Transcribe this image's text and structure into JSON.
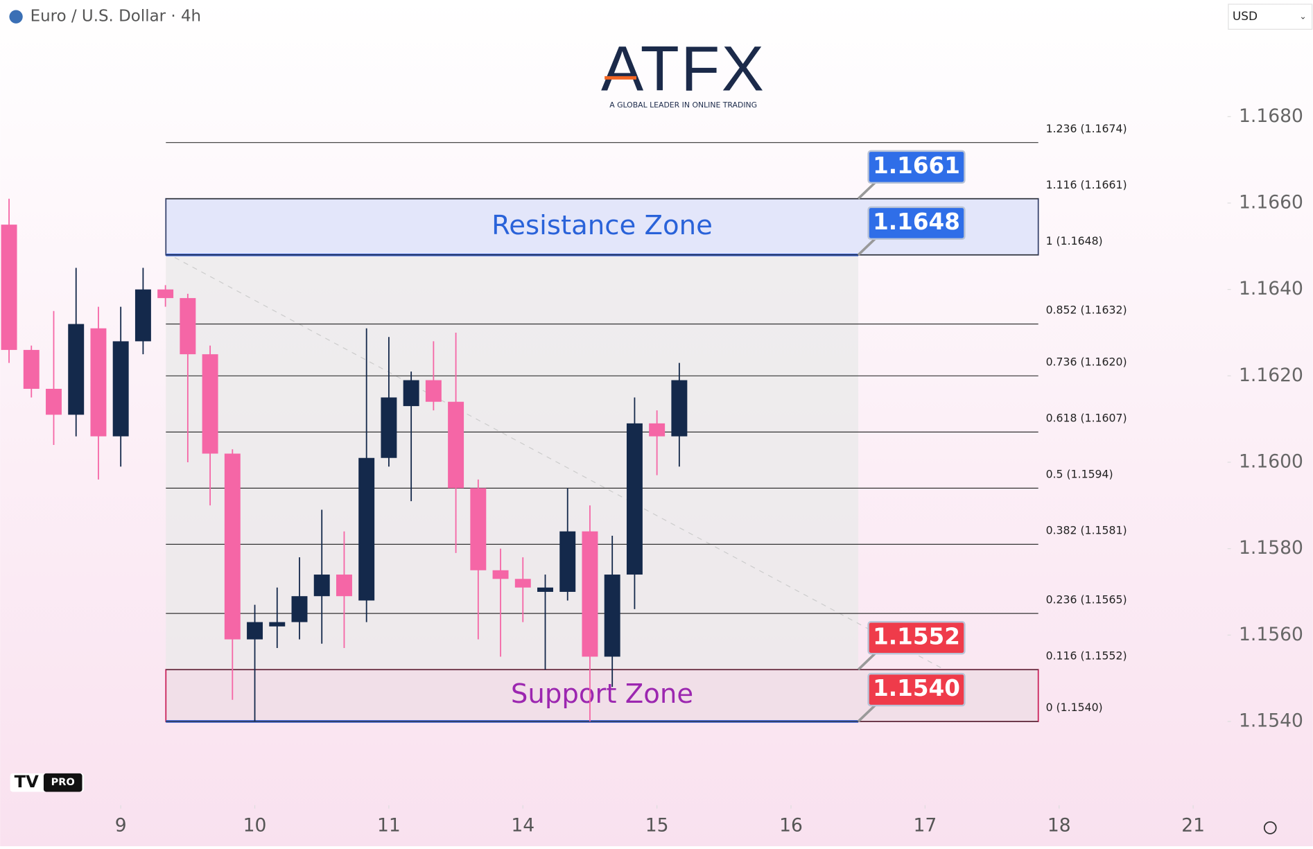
{
  "header": {
    "currency": "USD"
  },
  "branding": {
    "logo": "ATFX",
    "tagline": "A GLOBAL LEADER IN ONLINE TRADING",
    "badge": "PRO"
  },
  "chart_data": {
    "type": "candlestick",
    "title": "Euro / U.S. Dollar · 4h",
    "x": [
      0,
      1,
      2,
      3,
      4,
      5,
      6,
      7,
      8,
      9,
      10,
      11,
      12,
      13,
      14,
      15,
      16,
      17,
      18,
      19,
      20,
      21,
      22,
      23,
      24,
      25,
      26,
      27,
      28,
      29,
      30
    ],
    "open": [
      1.1655,
      1.1626,
      1.1617,
      1.1611,
      1.1631,
      1.1606,
      1.1628,
      1.164,
      1.1638,
      1.1625,
      1.1602,
      1.1559,
      1.1562,
      1.1563,
      1.1569,
      1.1574,
      1.1568,
      1.1601,
      1.1613,
      1.1619,
      1.1614,
      1.1594,
      1.1575,
      1.1573,
      1.157,
      1.157,
      1.1584,
      1.1555,
      1.1574,
      1.1609,
      1.1606
    ],
    "high": [
      1.1661,
      1.1627,
      1.1635,
      1.1645,
      1.1636,
      1.1636,
      1.1645,
      1.1641,
      1.1639,
      1.1627,
      1.1603,
      1.1567,
      1.1571,
      1.1578,
      1.1589,
      1.1584,
      1.1631,
      1.1629,
      1.1621,
      1.1628,
      1.163,
      1.1596,
      1.158,
      1.1578,
      1.1574,
      1.1594,
      1.159,
      1.1583,
      1.1615,
      1.1612,
      1.1623
    ],
    "low": [
      1.1623,
      1.1615,
      1.1604,
      1.1606,
      1.1596,
      1.1599,
      1.1625,
      1.1636,
      1.16,
      1.159,
      1.1545,
      1.154,
      1.1557,
      1.1559,
      1.1558,
      1.1557,
      1.1563,
      1.1599,
      1.1591,
      1.1612,
      1.1579,
      1.1559,
      1.1555,
      1.1563,
      1.1552,
      1.1568,
      1.154,
      1.1548,
      1.1566,
      1.1597,
      1.1599
    ],
    "close": [
      1.1626,
      1.1617,
      1.1611,
      1.1632,
      1.1606,
      1.1628,
      1.164,
      1.1638,
      1.1625,
      1.1602,
      1.1559,
      1.1563,
      1.1563,
      1.1569,
      1.1574,
      1.1569,
      1.1601,
      1.1615,
      1.1619,
      1.1614,
      1.1594,
      1.1575,
      1.1573,
      1.1571,
      1.1571,
      1.1584,
      1.1555,
      1.1574,
      1.1609,
      1.1606,
      1.1619
    ],
    "up_color": "#14294b",
    "down_color": "#f566a6",
    "xlim": [
      -0.4,
      54.5
    ],
    "xticks": [
      {
        "value": 5,
        "label": "9"
      },
      {
        "value": 11,
        "label": "10"
      },
      {
        "value": 17,
        "label": "11"
      },
      {
        "value": 23,
        "label": "14"
      },
      {
        "value": 29,
        "label": "15"
      },
      {
        "value": 35,
        "label": "16"
      },
      {
        "value": 41,
        "label": "17"
      },
      {
        "value": 47,
        "label": "18"
      },
      {
        "value": 53,
        "label": "21"
      }
    ],
    "ylim": [
      1.1521,
      1.1707
    ],
    "yticks": [
      {
        "value": 1.154,
        "label": "1.1540"
      },
      {
        "value": 1.156,
        "label": "1.1560"
      },
      {
        "value": 1.158,
        "label": "1.1580"
      },
      {
        "value": 1.16,
        "label": "1.1600"
      },
      {
        "value": 1.162,
        "label": "1.1620"
      },
      {
        "value": 1.164,
        "label": "1.1640"
      },
      {
        "value": 1.166,
        "label": "1.1660"
      },
      {
        "value": 1.168,
        "label": "1.1680"
      }
    ],
    "fib_levels": [
      {
        "value": 1.1674,
        "label": "1.236 (1.1674)"
      },
      {
        "value": 1.1661,
        "label": "1.116 (1.1661)"
      },
      {
        "value": 1.1648,
        "label": "1 (1.1648)"
      },
      {
        "value": 1.1632,
        "label": "0.852 (1.1632)"
      },
      {
        "value": 1.162,
        "label": "0.736 (1.1620)"
      },
      {
        "value": 1.1607,
        "label": "0.618 (1.1607)"
      },
      {
        "value": 1.1594,
        "label": "0.5 (1.1594)"
      },
      {
        "value": 1.1581,
        "label": "0.382 (1.1581)"
      },
      {
        "value": 1.1565,
        "label": "0.236 (1.1565)"
      },
      {
        "value": 1.1552,
        "label": "0.116 (1.1552)"
      },
      {
        "value": 1.154,
        "label": "0 (1.1540)"
      }
    ],
    "zones": [
      {
        "label": "Resistance Zone",
        "low": 1.1648,
        "high": 1.1661,
        "color": "#2962d9",
        "fill": "#e3e6fa",
        "stroke": "#3b4770",
        "tag_color": "#2f6ee8",
        "tags": [
          {
            "value": 1.1661,
            "label": "1.1661"
          },
          {
            "value": 1.1648,
            "label": "1.1648"
          }
        ]
      },
      {
        "label": "Support Zone",
        "low": 1.154,
        "high": 1.1552,
        "color": "#9c27b0",
        "fill": "#f1dfe8",
        "stroke": "#c9245c",
        "tag_color": "#ef3b4a",
        "tags": [
          {
            "value": 1.1552,
            "label": "1.1552"
          },
          {
            "value": 1.154,
            "label": "1.1540"
          }
        ]
      }
    ]
  }
}
